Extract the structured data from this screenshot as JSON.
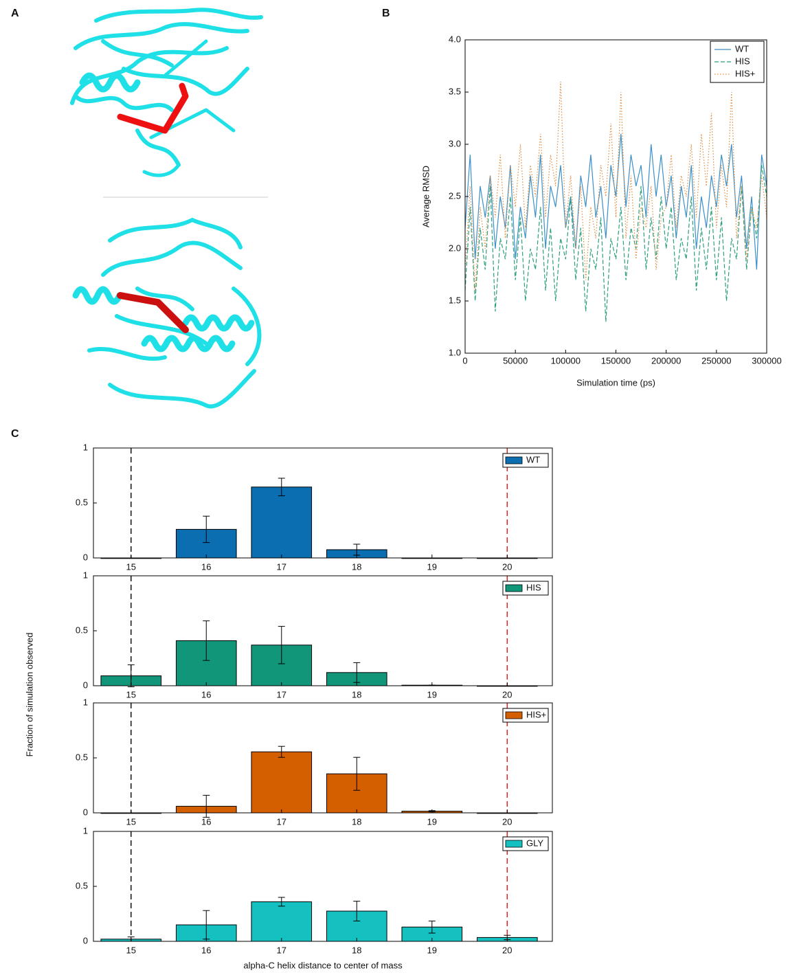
{
  "panel_labels": [
    "A",
    "B",
    "C"
  ],
  "shared_ylabel": "Fraction of simulation observed",
  "chart_data": [
    {
      "type": "line",
      "xlabel": "Simulation time (ps)",
      "ylabel": "Average RMSD",
      "x": [
        0,
        5000,
        10000,
        15000,
        20000,
        25000,
        30000,
        35000,
        40000,
        45000,
        50000,
        55000,
        60000,
        65000,
        70000,
        75000,
        80000,
        85000,
        90000,
        95000,
        100000,
        105000,
        110000,
        115000,
        120000,
        125000,
        130000,
        135000,
        140000,
        145000,
        150000,
        155000,
        160000,
        165000,
        170000,
        175000,
        180000,
        185000,
        190000,
        195000,
        200000,
        205000,
        210000,
        215000,
        220000,
        225000,
        230000,
        235000,
        240000,
        245000,
        250000,
        255000,
        260000,
        265000,
        270000,
        275000,
        280000,
        285000,
        290000,
        295000,
        300000
      ],
      "series": [
        {
          "name": "WT",
          "color": "#3a8fc8",
          "style": "solid",
          "values": [
            2.2,
            2.9,
            1.9,
            2.6,
            2.3,
            2.7,
            2.0,
            2.5,
            2.2,
            2.8,
            1.9,
            2.4,
            2.1,
            2.7,
            2.3,
            2.9,
            2.0,
            2.6,
            2.4,
            2.8,
            2.2,
            2.5,
            2.0,
            2.7,
            2.4,
            2.9,
            2.3,
            2.6,
            2.1,
            2.8,
            2.5,
            3.1,
            2.4,
            2.9,
            2.6,
            2.8,
            2.3,
            3.0,
            2.5,
            2.9,
            2.4,
            2.7,
            2.1,
            2.6,
            2.3,
            2.8,
            2.0,
            2.5,
            2.2,
            2.7,
            2.4,
            2.9,
            2.6,
            3.0,
            2.3,
            2.7,
            2.0,
            2.5,
            1.8,
            2.9,
            2.6
          ]
        },
        {
          "name": "HIS",
          "color": "#2aa07a",
          "style": "dashed",
          "values": [
            1.6,
            2.4,
            1.5,
            2.2,
            1.8,
            2.6,
            1.4,
            2.1,
            1.9,
            2.5,
            1.7,
            2.3,
            1.5,
            2.0,
            1.8,
            2.4,
            1.6,
            2.2,
            1.5,
            2.1,
            1.9,
            2.5,
            1.7,
            2.2,
            1.4,
            2.0,
            1.8,
            2.3,
            1.3,
            2.1,
            1.9,
            2.4,
            1.7,
            2.2,
            2.0,
            2.6,
            1.8,
            2.3,
            1.9,
            2.5,
            2.0,
            2.4,
            1.7,
            2.1,
            1.9,
            2.5,
            1.6,
            2.2,
            1.8,
            2.4,
            1.7,
            2.3,
            1.5,
            2.1,
            1.9,
            2.6,
            1.8,
            2.4,
            2.1,
            2.8,
            2.5
          ]
        },
        {
          "name": "HIS+",
          "color": "#e08a3c",
          "style": "dotted",
          "values": [
            1.8,
            2.6,
            1.6,
            2.4,
            2.0,
            2.7,
            2.3,
            2.9,
            2.1,
            2.8,
            2.4,
            3.0,
            2.2,
            2.8,
            2.5,
            3.1,
            2.3,
            2.9,
            2.6,
            3.6,
            2.2,
            2.7,
            2.0,
            2.6,
            1.7,
            2.4,
            2.1,
            2.8,
            2.5,
            3.2,
            2.3,
            3.5,
            2.1,
            2.7,
            1.9,
            2.4,
            2.2,
            2.6,
            1.8,
            2.3,
            2.4,
            2.9,
            2.2,
            2.7,
            2.5,
            3.0,
            2.3,
            3.1,
            2.6,
            3.3,
            2.2,
            2.8,
            2.4,
            3.5,
            2.1,
            2.6,
            1.9,
            2.4,
            2.2,
            2.7,
            2.3
          ]
        }
      ],
      "xlim": [
        0,
        300000
      ],
      "ylim": [
        1,
        4
      ],
      "xticks": [
        0,
        50000,
        100000,
        150000,
        200000,
        250000,
        300000
      ],
      "yticks": [
        {
          "value": 1,
          "label": "1.0"
        },
        1.5,
        {
          "value": 2,
          "label": "2.0"
        },
        2.5,
        {
          "value": 3,
          "label": "3.0"
        },
        3.5,
        {
          "value": 4,
          "label": "4.0"
        }
      ],
      "legend": "upper right"
    },
    {
      "type": "bar",
      "x": [
        15,
        16,
        17,
        18,
        19,
        20
      ],
      "series": [
        {
          "name": "WT",
          "color": "#0a6eb0",
          "values": [
            0,
            0.26,
            0.645,
            0.075,
            0,
            0
          ],
          "errors": [
            0,
            0.12,
            0.08,
            0.05,
            0,
            0
          ]
        }
      ],
      "xlim": [
        14.5,
        20.6
      ],
      "ylim": [
        0,
        1
      ],
      "xticks": [
        15,
        16,
        17,
        18,
        19,
        20
      ],
      "yticks": [
        0,
        0.5,
        1
      ],
      "vlines": [
        {
          "x": 15,
          "color": "#111111"
        },
        {
          "x": 20,
          "color": "#e02020"
        }
      ],
      "legend": "upper right"
    },
    {
      "type": "bar",
      "x": [
        15,
        16,
        17,
        18,
        19,
        20
      ],
      "series": [
        {
          "name": "HIS",
          "color": "#11967a",
          "values": [
            0.09,
            0.41,
            0.37,
            0.12,
            0.005,
            0
          ],
          "errors": [
            0.1,
            0.18,
            0.17,
            0.09,
            0,
            0
          ]
        }
      ],
      "xlim": [
        14.5,
        20.6
      ],
      "ylim": [
        0,
        1
      ],
      "xticks": [
        15,
        16,
        17,
        18,
        19,
        20
      ],
      "yticks": [
        0,
        0.5,
        1
      ],
      "vlines": [
        {
          "x": 15,
          "color": "#111111"
        },
        {
          "x": 20,
          "color": "#e02020"
        }
      ],
      "legend": "upper right"
    },
    {
      "type": "bar",
      "x": [
        15,
        16,
        17,
        18,
        19,
        20
      ],
      "series": [
        {
          "name": "HIS+",
          "color": "#d45f00",
          "values": [
            0,
            0.06,
            0.555,
            0.355,
            0.015,
            0
          ],
          "errors": [
            0,
            0.1,
            0.05,
            0.15,
            0.005,
            0
          ]
        }
      ],
      "xlim": [
        14.5,
        20.6
      ],
      "ylim": [
        0,
        1
      ],
      "xticks": [
        15,
        16,
        17,
        18,
        19,
        20
      ],
      "yticks": [
        0,
        0.5,
        1
      ],
      "vlines": [
        {
          "x": 15,
          "color": "#111111"
        },
        {
          "x": 20,
          "color": "#e02020"
        }
      ],
      "legend": "upper right"
    },
    {
      "type": "bar",
      "x": [
        15,
        16,
        17,
        18,
        19,
        20
      ],
      "xlabel": "alpha-C helix distance to center of mass",
      "series": [
        {
          "name": "GLY",
          "color": "#14c0c0",
          "values": [
            0.02,
            0.15,
            0.36,
            0.275,
            0.13,
            0.035
          ],
          "errors": [
            0.02,
            0.13,
            0.04,
            0.09,
            0.055,
            0.02
          ]
        }
      ],
      "xlim": [
        14.5,
        20.6
      ],
      "ylim": [
        0,
        1
      ],
      "xticks": [
        15,
        16,
        17,
        18,
        19,
        20
      ],
      "yticks": [
        0,
        0.5,
        1
      ],
      "vlines": [
        {
          "x": 15,
          "color": "#111111"
        },
        {
          "x": 20,
          "color": "#e02020"
        }
      ],
      "legend": "upper right"
    }
  ]
}
